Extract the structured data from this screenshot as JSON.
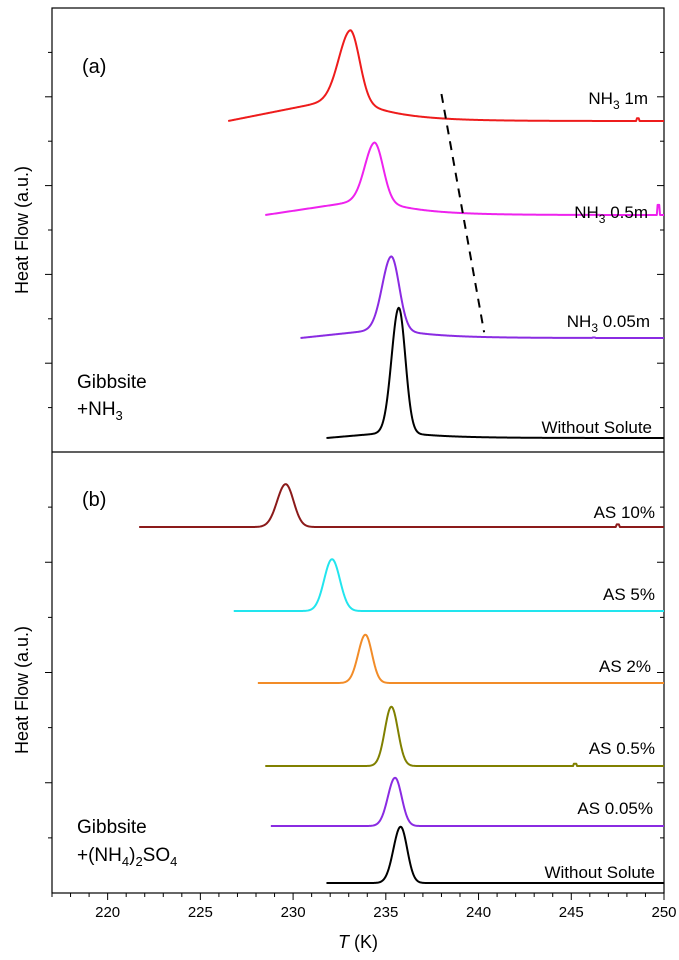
{
  "chart_data": {
    "type": "line",
    "x_axis": {
      "label_italic": "T",
      "label_unit": " (K)",
      "range": [
        217,
        250
      ],
      "ticks": [
        220,
        225,
        230,
        235,
        240,
        245,
        250
      ],
      "tick_labels": [
        "220",
        "225",
        "230",
        "235",
        "240",
        "245",
        "250"
      ]
    },
    "panels": [
      {
        "id": "a",
        "label": "(a)",
        "ylabel": "Heat Flow (a.u.)",
        "sample_label": [
          "Gibbsite",
          "+NH",
          "3"
        ],
        "series": [
          {
            "name_parts": [
              "NH",
              "3",
              " 1m"
            ],
            "color": "#ee1c1c",
            "start": 226.5,
            "end": 250,
            "peak": 233.1,
            "width_left": 0.9,
            "width_right": 0.7,
            "height": 0.74,
            "baseline": 0.27,
            "kink": [
              248.6,
              0.03
            ]
          },
          {
            "name_parts": [
              "NH",
              "3",
              " 0.5m"
            ],
            "color": "#ee22ee",
            "start": 228.5,
            "end": 250,
            "peak": 234.4,
            "width_left": 0.75,
            "width_right": 0.65,
            "height": 0.72,
            "baseline": 0.21,
            "kink": [
              249.7,
              0.13
            ]
          },
          {
            "name_parts": [
              "NH",
              "3",
              " 0.05m"
            ],
            "color": "#8a2be2",
            "start": 230.4,
            "end": 250,
            "peak": 235.3,
            "width_left": 0.7,
            "width_right": 0.6,
            "height": 0.75,
            "baseline": 0.1,
            "kink": [
              246.2,
              0.005
            ]
          },
          {
            "name_parts": [
              "Without Solute"
            ],
            "color": "#000000",
            "start": 231.8,
            "end": 250,
            "peak": 235.7,
            "width_left": 0.55,
            "width_right": 0.5,
            "height": 1.0,
            "baseline": 0.05,
            "kink": null
          }
        ],
        "dashed_guide": {
          "from": [
            238.0,
            0.3
          ],
          "to": [
            240.3,
            0.06
          ]
        }
      },
      {
        "id": "b",
        "label": "(b)",
        "ylabel": "Heat Flow (a.u.)",
        "sample_label": [
          "Gibbsite",
          "+(NH",
          "4",
          ")",
          "2",
          "SO",
          "4"
        ],
        "series": [
          {
            "name_parts": [
              "AS 10%"
            ],
            "color": "#8b1a1a",
            "start": 221.7,
            "end": 250,
            "peak": 229.6,
            "width_left": 0.65,
            "width_right": 0.6,
            "height": 0.65,
            "baseline": 0.0,
            "kink": [
              247.5,
              0.04
            ]
          },
          {
            "name_parts": [
              "AS 5%"
            ],
            "color": "#22e5ee",
            "start": 226.8,
            "end": 250,
            "peak": 232.1,
            "width_left": 0.6,
            "width_right": 0.6,
            "height": 0.74,
            "baseline": 0.0,
            "kink": null
          },
          {
            "name_parts": [
              "AS 2%"
            ],
            "color": "#f28c28",
            "start": 228.1,
            "end": 250,
            "peak": 233.9,
            "width_left": 0.55,
            "width_right": 0.5,
            "height": 0.7,
            "baseline": 0.0,
            "kink": null
          },
          {
            "name_parts": [
              "AS 0.5%"
            ],
            "color": "#808000",
            "start": 228.5,
            "end": 250,
            "peak": 235.3,
            "width_left": 0.5,
            "width_right": 0.5,
            "height": 0.77,
            "baseline": 0.0,
            "kink": [
              245.2,
              0.03
            ]
          },
          {
            "name_parts": [
              "AS 0.05%"
            ],
            "color": "#8a2be2",
            "start": 228.8,
            "end": 250,
            "peak": 235.5,
            "width_left": 0.55,
            "width_right": 0.5,
            "height": 0.67,
            "baseline": 0.0,
            "kink": null
          },
          {
            "name_parts": [
              "Without Solute"
            ],
            "color": "#000000",
            "start": 231.8,
            "end": 250,
            "peak": 235.8,
            "width_left": 0.55,
            "width_right": 0.5,
            "height": 0.76,
            "baseline": 0.0,
            "kink": null
          }
        ]
      }
    ]
  }
}
